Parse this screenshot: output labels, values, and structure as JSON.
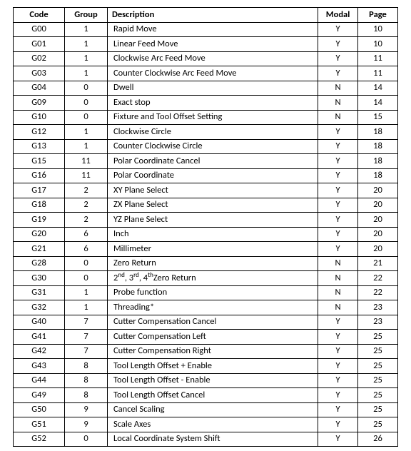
{
  "table": {
    "columns": [
      "Code",
      "Group",
      "Description",
      "Modal",
      "Page"
    ],
    "col_align": [
      "center",
      "center",
      "left",
      "center",
      "center"
    ],
    "header_align": [
      "center",
      "center",
      "left",
      "center",
      "center"
    ],
    "border_color": "#000000",
    "background_color": "#ffffff",
    "font_size_pt": 10,
    "header_font_weight": 700,
    "rows": [
      {
        "code": "G00",
        "group": "1",
        "desc": "Rapid Move",
        "modal": "Y",
        "page": "10"
      },
      {
        "code": "G01",
        "group": "1",
        "desc": "Linear Feed Move",
        "modal": "Y",
        "page": "10"
      },
      {
        "code": "G02",
        "group": "1",
        "desc": "Clockwise Arc Feed Move",
        "modal": "Y",
        "page": "11"
      },
      {
        "code": "G03",
        "group": "1",
        "desc": "Counter Clockwise Arc Feed Move",
        "modal": "Y",
        "page": "11"
      },
      {
        "code": "G04",
        "group": "0",
        "desc": "Dwell",
        "modal": "N",
        "page": "14"
      },
      {
        "code": "G09",
        "group": "0",
        "desc": "Exact stop",
        "modal": "N",
        "page": "14"
      },
      {
        "code": "G10",
        "group": "0",
        "desc": "Fixture and Tool Offset Setting",
        "modal": "N",
        "page": "15"
      },
      {
        "code": "G12",
        "group": "1",
        "desc": "Clockwise Circle",
        "modal": "Y",
        "page": "18"
      },
      {
        "code": "G13",
        "group": "1",
        "desc": "Counter Clockwise Circle",
        "modal": "Y",
        "page": "18"
      },
      {
        "code": "G15",
        "group": "11",
        "desc": "Polar Coordinate Cancel",
        "modal": "Y",
        "page": "18"
      },
      {
        "code": "G16",
        "group": "11",
        "desc": "Polar Coordinate",
        "modal": "Y",
        "page": "18"
      },
      {
        "code": "G17",
        "group": "2",
        "desc": "XY Plane Select",
        "modal": "Y",
        "page": "20"
      },
      {
        "code": "G18",
        "group": "2",
        "desc": "ZX Plane Select",
        "modal": "Y",
        "page": "20"
      },
      {
        "code": "G19",
        "group": "2",
        "desc": "YZ Plane Select",
        "modal": "Y",
        "page": "20"
      },
      {
        "code": "G20",
        "group": "6",
        "desc": "Inch",
        "modal": "Y",
        "page": "20"
      },
      {
        "code": "G21",
        "group": "6",
        "desc": "Millimeter",
        "modal": "Y",
        "page": "20"
      },
      {
        "code": "G28",
        "group": "0",
        "desc": "Zero Return",
        "modal": "N",
        "page": "21"
      },
      {
        "code": "G30",
        "group": "0",
        "desc_html": "2<sup>nd</sup>, 3<sup>rd</sup>, 4<sup>th</sup>Zero Return",
        "modal": "N",
        "page": "22"
      },
      {
        "code": "G31",
        "group": "1",
        "desc": "Probe function",
        "modal": "N",
        "page": "22"
      },
      {
        "code": "G32",
        "group": "1",
        "desc": "Threading*",
        "modal": "N",
        "page": "23"
      },
      {
        "code": "G40",
        "group": "7",
        "desc": "Cutter Compensation Cancel",
        "modal": "Y",
        "page": "23"
      },
      {
        "code": "G41",
        "group": "7",
        "desc": "Cutter Compensation Left",
        "modal": "Y",
        "page": "25"
      },
      {
        "code": "G42",
        "group": "7",
        "desc": "Cutter Compensation Right",
        "modal": "Y",
        "page": "25"
      },
      {
        "code": "G43",
        "group": "8",
        "desc": "Tool Length Offset + Enable",
        "modal": "Y",
        "page": "25"
      },
      {
        "code": "G44",
        "group": "8",
        "desc": "Tool Length Offset - Enable",
        "modal": "Y",
        "page": "25"
      },
      {
        "code": "G49",
        "group": "8",
        "desc": "Tool Length Offset Cancel",
        "modal": "Y",
        "page": "25"
      },
      {
        "code": "G50",
        "group": "9",
        "desc": "Cancel Scaling",
        "modal": "Y",
        "page": "25"
      },
      {
        "code": "G51",
        "group": "9",
        "desc": "Scale Axes",
        "modal": "Y",
        "page": "25"
      },
      {
        "code": "G52",
        "group": "0",
        "desc": "Local Coordinate System Shift",
        "modal": "Y",
        "page": "26"
      }
    ]
  }
}
